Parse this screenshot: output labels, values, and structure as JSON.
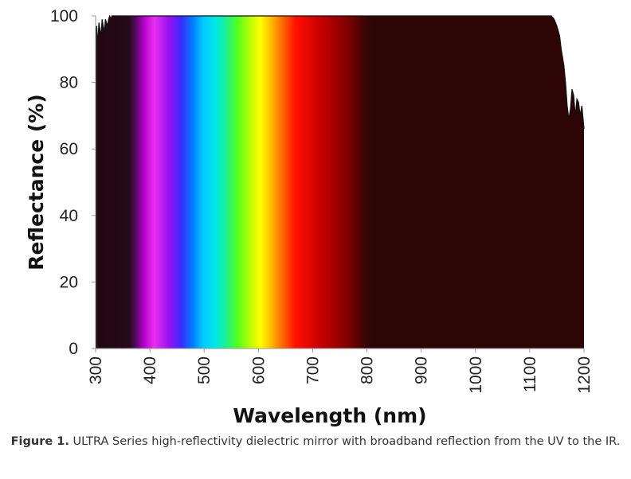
{
  "chart_data": {
    "type": "area",
    "xlabel": "Wavelength (nm)",
    "ylabel": "Reflectance (%)",
    "xlim": [
      300,
      1200
    ],
    "ylim": [
      0,
      100
    ],
    "x_ticks": [
      "300",
      "400",
      "500",
      "600",
      "700",
      "800",
      "900",
      "1000",
      "1100",
      "1200"
    ],
    "y_ticks": [
      "0",
      "20",
      "40",
      "60",
      "80",
      "100"
    ],
    "grid": false,
    "legend": "none",
    "fill_background": "visible-spectrum gradient (violet to red) from ~370 to ~760 nm, dark maroon elsewhere",
    "colors": {
      "uv_region": "#220810",
      "ir_region": "#2e0505",
      "curve": "#111111",
      "axis": "#999999"
    },
    "series": [
      {
        "x": [
          300,
          302,
          304,
          306,
          308,
          310,
          312,
          314,
          316,
          318,
          320,
          322,
          324,
          326,
          328,
          330,
          335,
          340,
          350,
          360,
          400,
          500,
          600,
          700,
          800,
          900,
          1000,
          1100,
          1140,
          1145,
          1150,
          1155,
          1158,
          1160,
          1163,
          1166,
          1169,
          1172,
          1175,
          1178,
          1181,
          1184,
          1187,
          1190,
          1193,
          1196,
          1199,
          1200
        ],
        "y": [
          93,
          97,
          91,
          98,
          96,
          94,
          99,
          97,
          95,
          99,
          98,
          97,
          99,
          100,
          99,
          100,
          100,
          100,
          100,
          100,
          100,
          100,
          100,
          100,
          100,
          100,
          100,
          100,
          100,
          99,
          97,
          94,
          90,
          88,
          85,
          80,
          73,
          69,
          72,
          78,
          76,
          70,
          75,
          74,
          70,
          73,
          68,
          66
        ]
      }
    ]
  },
  "caption": {
    "label": "Figure 1.",
    "text": "ULTRA Series high-reflectivity dielectric mirror with broadband reflection from the UV to the IR."
  }
}
